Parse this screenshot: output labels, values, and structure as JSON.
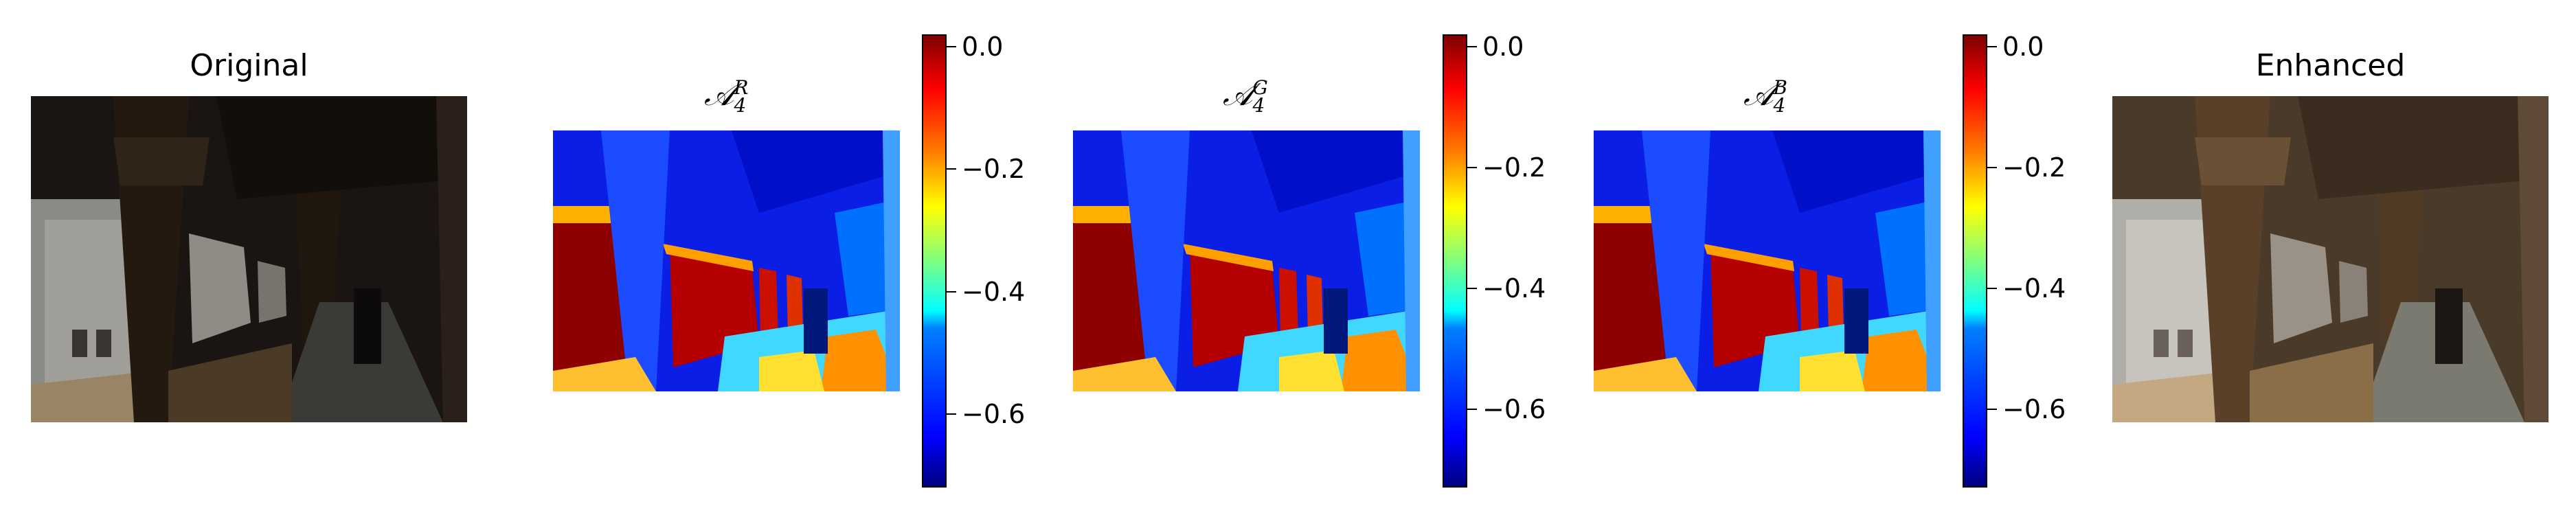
{
  "chart_data": {
    "type": "heatmap",
    "panels": [
      {
        "id": "original",
        "kind": "image",
        "title": "Original"
      },
      {
        "id": "a4r",
        "kind": "heatmap",
        "title_base": "𝒜",
        "title_sub": "4",
        "title_sup": "R",
        "colorbar": {
          "range": [
            -0.72,
            0.02
          ],
          "ticks": [
            0.0,
            -0.2,
            -0.4,
            -0.6
          ],
          "tick_labels": [
            "0.0",
            "−0.2",
            "−0.4",
            "−0.6"
          ]
        }
      },
      {
        "id": "a4g",
        "kind": "heatmap",
        "title_base": "𝒜",
        "title_sub": "4",
        "title_sup": "G",
        "colorbar": {
          "range": [
            -0.73,
            0.02
          ],
          "ticks": [
            0.0,
            -0.2,
            -0.4,
            -0.6
          ],
          "tick_labels": [
            "0.0",
            "−0.2",
            "−0.4",
            "−0.6"
          ]
        }
      },
      {
        "id": "a4b",
        "kind": "heatmap",
        "title_base": "𝒜",
        "title_sub": "4",
        "title_sup": "B",
        "colorbar": {
          "range": [
            -0.73,
            0.02
          ],
          "ticks": [
            0.0,
            -0.2,
            -0.4,
            -0.6
          ],
          "tick_labels": [
            "0.0",
            "−0.2",
            "−0.4",
            "−0.6"
          ]
        }
      },
      {
        "id": "enhanced",
        "kind": "image",
        "title": "Enhanced"
      }
    ],
    "colormap": "jet"
  }
}
